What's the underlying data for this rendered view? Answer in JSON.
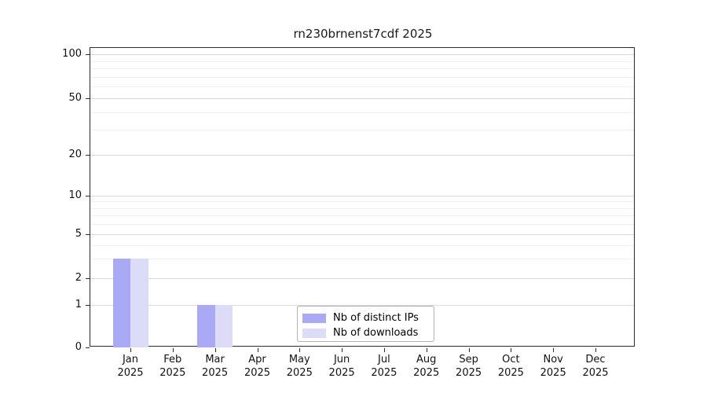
{
  "chart_data": {
    "type": "bar",
    "title": "rn230brnenst7cdf 2025",
    "year": "2025",
    "months": [
      "Jan",
      "Feb",
      "Mar",
      "Apr",
      "May",
      "Jun",
      "Jul",
      "Aug",
      "Sep",
      "Oct",
      "Nov",
      "Dec"
    ],
    "series": [
      {
        "name": "Nb of distinct IPs",
        "color": "#a9a9f6",
        "values": [
          3,
          0,
          1,
          0,
          0,
          0,
          0,
          0,
          0,
          0,
          0,
          0
        ]
      },
      {
        "name": "Nb of downloads",
        "color": "#dcdcf8",
        "values": [
          3,
          0,
          1,
          0,
          0,
          0,
          0,
          0,
          0,
          0,
          0,
          0
        ]
      }
    ],
    "xlabel": "",
    "ylabel": "",
    "yaxis": {
      "scale": "symlog",
      "ylim": [
        0,
        100
      ],
      "major_ticks": [
        0,
        1,
        2,
        5,
        10,
        20,
        50,
        100
      ],
      "minor_gridlines": [
        3,
        4,
        6,
        7,
        8,
        9,
        30,
        40,
        60,
        70,
        80,
        90
      ]
    },
    "grid": true,
    "legend_position": "lower center",
    "colors": {
      "grid_major": "#d9d9d9",
      "grid_minor": "#f0f0f0",
      "spine": "#2b2b2b",
      "title_text": "#1a1a1a"
    }
  }
}
